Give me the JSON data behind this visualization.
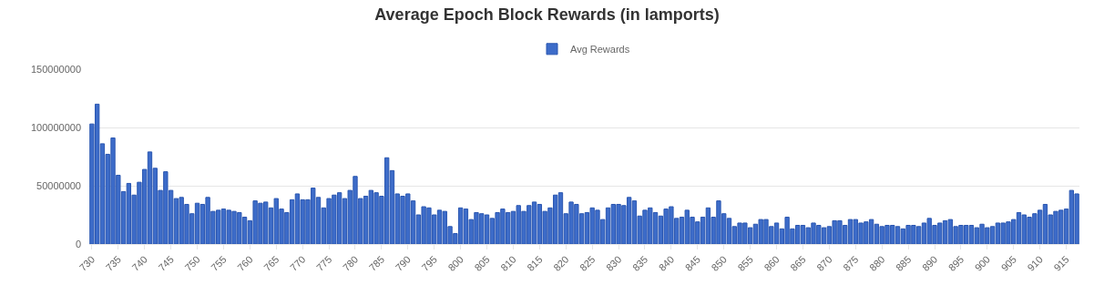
{
  "chart_data": {
    "type": "bar",
    "title": "Average Epoch Block Rewards (in lamports)",
    "categories": [
      "730",
      null,
      null,
      null,
      null,
      "735",
      null,
      null,
      null,
      null,
      "740",
      null,
      null,
      null,
      null,
      "745",
      null,
      null,
      null,
      null,
      "750",
      null,
      null,
      null,
      null,
      "755",
      null,
      null,
      null,
      null,
      "760",
      null,
      null,
      null,
      null,
      "765",
      null,
      null,
      null,
      null,
      "770",
      null,
      null,
      null,
      null,
      "775",
      null,
      null,
      null,
      null,
      "780",
      null,
      null,
      null,
      null,
      "785",
      null,
      null,
      null,
      null,
      "790",
      null,
      null,
      null,
      null,
      "795",
      null,
      null,
      null,
      null,
      "800",
      null,
      null,
      null,
      null,
      "805",
      null,
      null,
      null,
      null,
      "810",
      null,
      null,
      null,
      null,
      "815",
      null,
      null,
      null,
      null,
      "820",
      null,
      null,
      null,
      null,
      "825",
      null,
      null,
      null,
      null,
      "830",
      null,
      null,
      null,
      null,
      "835",
      null,
      null,
      null,
      null,
      "840",
      null,
      null,
      null,
      null,
      "845",
      null,
      null,
      null,
      null,
      "850",
      null,
      null,
      null,
      null,
      "855",
      null,
      null,
      null,
      null,
      "860",
      null,
      null,
      null,
      null,
      "865",
      null,
      null,
      null,
      null,
      "870",
      null,
      null,
      null,
      null,
      "875",
      null,
      null,
      null,
      null,
      "880",
      null,
      null,
      null,
      null,
      "885",
      null,
      null,
      null,
      null,
      "890",
      null,
      null,
      null,
      null,
      "895",
      null,
      null,
      null,
      null,
      "900",
      null,
      null,
      null,
      null,
      "905",
      null,
      null,
      null,
      null,
      "910",
      null,
      null,
      null,
      null,
      "915",
      null,
      null
    ],
    "series": [
      {
        "name": "Avg Rewards",
        "color": "#3d6cc9",
        "values": [
          103000000,
          120000000,
          86000000,
          77000000,
          91000000,
          59000000,
          45000000,
          52000000,
          42000000,
          53000000,
          64000000,
          79000000,
          65000000,
          46000000,
          62000000,
          46000000,
          39000000,
          40000000,
          34000000,
          26000000,
          35000000,
          34000000,
          40000000,
          28000000,
          29000000,
          30000000,
          29000000,
          28000000,
          27000000,
          23000000,
          20000000,
          37000000,
          35000000,
          36000000,
          31000000,
          39000000,
          30000000,
          27000000,
          38000000,
          43000000,
          38000000,
          38000000,
          48000000,
          40000000,
          31000000,
          39000000,
          42000000,
          44000000,
          39000000,
          46000000,
          58000000,
          39000000,
          41000000,
          46000000,
          44000000,
          41000000,
          74000000,
          63000000,
          43000000,
          41000000,
          43000000,
          37000000,
          25000000,
          32000000,
          31000000,
          25000000,
          29000000,
          28000000,
          15000000,
          9000000,
          31000000,
          30000000,
          21000000,
          27000000,
          26000000,
          25000000,
          22000000,
          27000000,
          30000000,
          27000000,
          28000000,
          33000000,
          28000000,
          33000000,
          36000000,
          34000000,
          28000000,
          31000000,
          42000000,
          44000000,
          26000000,
          36000000,
          34000000,
          26000000,
          27000000,
          31000000,
          29000000,
          21000000,
          31000000,
          34000000,
          34000000,
          33000000,
          40000000,
          37000000,
          24000000,
          29000000,
          31000000,
          27000000,
          24000000,
          30000000,
          32000000,
          22000000,
          23000000,
          29000000,
          23000000,
          19000000,
          23000000,
          31000000,
          23000000,
          37000000,
          26000000,
          22000000,
          15000000,
          18000000,
          18000000,
          14000000,
          17000000,
          21000000,
          21000000,
          15000000,
          18000000,
          13000000,
          23000000,
          13000000,
          16000000,
          16000000,
          14000000,
          18000000,
          16000000,
          14000000,
          15000000,
          20000000,
          20000000,
          16000000,
          21000000,
          21000000,
          18000000,
          19000000,
          21000000,
          17000000,
          15000000,
          16000000,
          16000000,
          15000000,
          13000000,
          16000000,
          16000000,
          15000000,
          18000000,
          22000000,
          16000000,
          18000000,
          20000000,
          21000000,
          15000000,
          16000000,
          16000000,
          16000000,
          14000000,
          17000000,
          14000000,
          15000000,
          18000000,
          18000000,
          19000000,
          21000000,
          27000000,
          25000000,
          23000000,
          26000000,
          29000000,
          34000000,
          25000000,
          28000000,
          29000000,
          30000000,
          46000000,
          43000000
        ]
      }
    ],
    "ylim": [
      0,
      150000000
    ],
    "yticks": [
      0,
      50000000,
      100000000,
      150000000
    ],
    "grid": "y",
    "legend": "top"
  }
}
